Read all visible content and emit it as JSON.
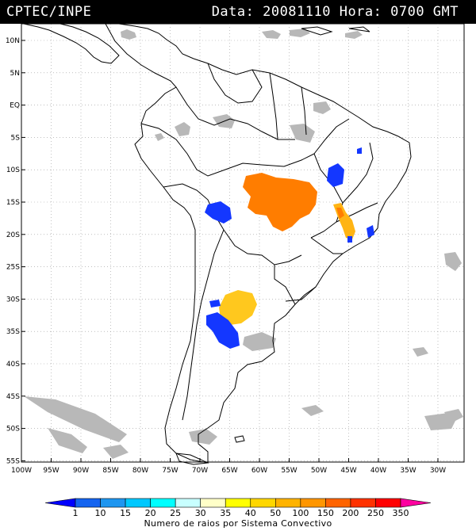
{
  "header": {
    "source": "CPTEC/INPE",
    "datetime": "Data: 20081110 Hora: 0700 GMT"
  },
  "map": {
    "lat_labels": [
      "10N",
      "5N",
      "EQ",
      "5S",
      "10S",
      "15S",
      "20S",
      "25S",
      "30S",
      "35S",
      "40S",
      "45S",
      "50S",
      "55S"
    ],
    "lon_labels": [
      "100W",
      "95W",
      "90W",
      "85W",
      "80W",
      "75W",
      "70W",
      "65W",
      "60W",
      "55W",
      "50W",
      "45W",
      "40W",
      "35W",
      "30W"
    ]
  },
  "legend": {
    "caption": "Numero de raios por Sistema Convectivo",
    "ticks": [
      "1",
      "10",
      "15",
      "20",
      "25",
      "30",
      "35",
      "40",
      "50",
      "100",
      "150",
      "200",
      "250",
      "350"
    ],
    "colors": [
      "#0000ff",
      "#1464f0",
      "#1e96f0",
      "#00c8ff",
      "#00ffff",
      "#c8ffff",
      "#ffffc8",
      "#ffff00",
      "#ffd700",
      "#ffb300",
      "#ff9600",
      "#ff6400",
      "#ff3200",
      "#ff0000",
      "#ff00a0"
    ]
  },
  "features": {
    "storm_colors": {
      "blue": "#1437ff",
      "orange": "#ff7d00",
      "amber": "#ffb414",
      "gold": "#ffc81e"
    },
    "cloud_color": "#b8b8b8"
  }
}
